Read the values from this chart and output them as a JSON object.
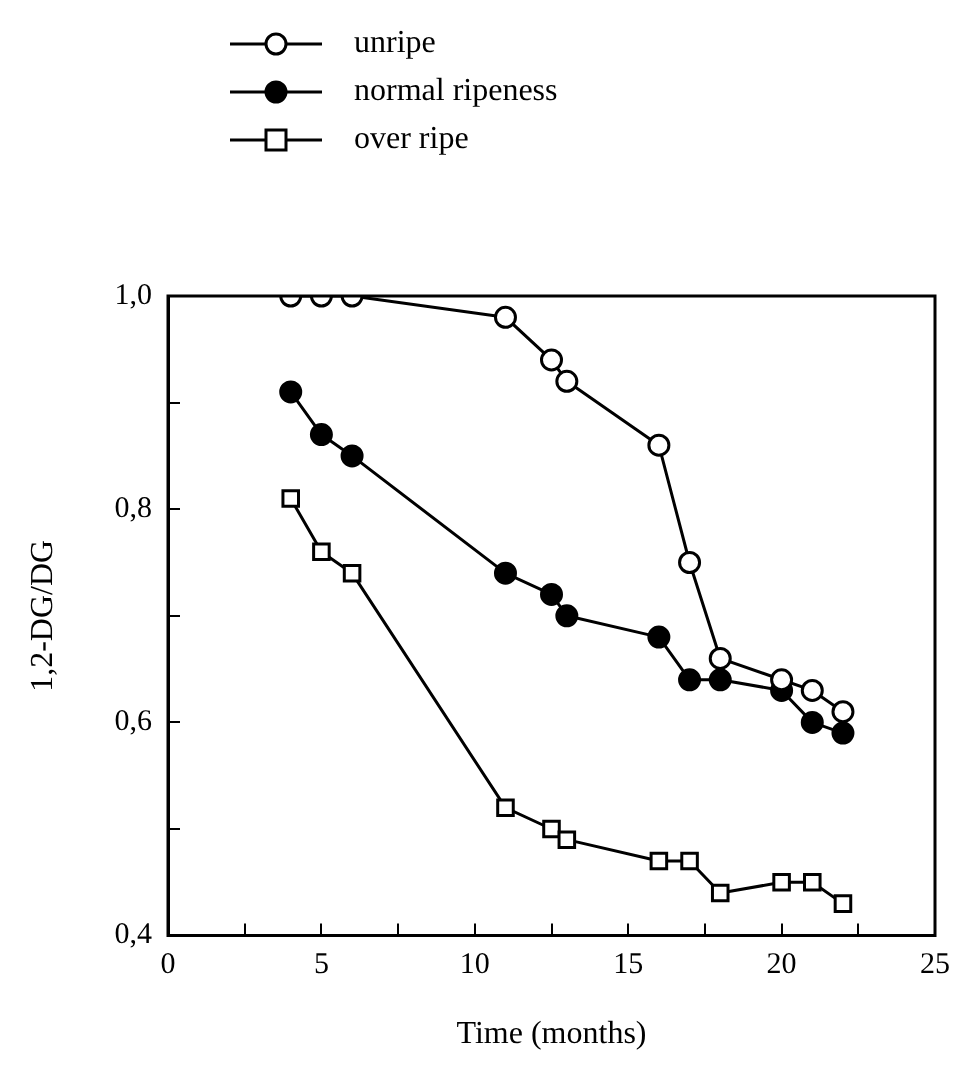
{
  "chart_data": {
    "type": "line",
    "xlabel": "Time (months)",
    "ylabel": "1,2-DG/DG",
    "legend": "top left",
    "line_style": "solid",
    "grid": false,
    "xlim": [
      0,
      25
    ],
    "xticks": [
      0,
      {
        "value": 2.5,
        "label": null
      },
      5,
      {
        "value": 7.5,
        "label": null
      },
      10,
      {
        "value": 12.5,
        "label": null
      },
      15,
      {
        "value": 17.5,
        "label": null
      },
      20,
      {
        "value": 22.5,
        "label": null
      },
      25
    ],
    "ylim": [
      0.4,
      1.0
    ],
    "yticks": [
      {
        "value": 0.4,
        "label": "0,4"
      },
      {
        "value": 0.5,
        "label": null
      },
      {
        "value": 0.6,
        "label": "0,6"
      },
      {
        "value": 0.7,
        "label": null
      },
      {
        "value": 0.8,
        "label": "0,8"
      },
      {
        "value": 0.9,
        "label": null
      },
      {
        "value": 1.0,
        "label": "1,0"
      }
    ],
    "x": [
      4,
      5,
      6,
      11,
      12.5,
      13,
      16,
      17,
      18,
      20,
      21,
      22
    ],
    "series": [
      {
        "name": "unripe",
        "color": "#000000",
        "marker": "circle",
        "values": [
          1.0,
          1.0,
          1.0,
          0.98,
          0.94,
          0.92,
          0.86,
          0.75,
          0.66,
          0.64,
          0.63,
          0.61
        ]
      },
      {
        "name": "normal ripeness",
        "color": "#000000",
        "marker": "circle",
        "colors": [
          "#000000",
          "#000000",
          "#000000",
          "#000000",
          "#000000",
          "#000000",
          "#000000",
          "#000000",
          "#000000",
          "#000000",
          "#000000",
          "#000000"
        ],
        "values": [
          0.91,
          0.87,
          0.85,
          0.74,
          0.72,
          0.7,
          0.68,
          0.64,
          0.64,
          0.63,
          0.6,
          0.59
        ]
      },
      {
        "name": "over ripe",
        "color": "#000000",
        "marker": "square",
        "values": [
          0.81,
          0.76,
          0.74,
          0.52,
          0.5,
          0.49,
          0.47,
          0.47,
          0.44,
          0.45,
          0.45,
          0.43
        ]
      }
    ]
  }
}
